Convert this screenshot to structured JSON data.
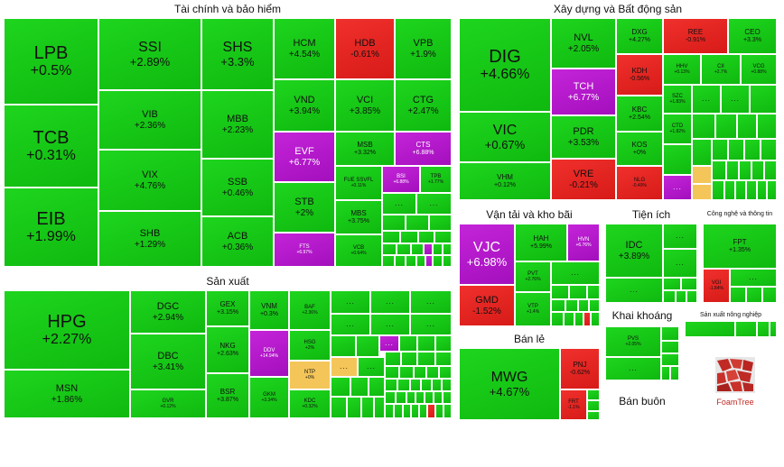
{
  "colors": {
    "up": "#14c614",
    "down": "#e32522",
    "ceiling": "#b41ac9",
    "ref": "#f4c659"
  },
  "sectors": {
    "finance": {
      "title": "Tài chính và bảo hiểm"
    },
    "realestate": {
      "title": "Xây dựng và Bất động sản"
    },
    "transport": {
      "title": "Vận tải và kho bãi"
    },
    "utilities": {
      "title": "Tiện ích"
    },
    "it": {
      "title": "Công nghệ và thông tin"
    },
    "manufacturing": {
      "title": "Sản xuất"
    },
    "mining": {
      "title": "Khai khoáng"
    },
    "agri": {
      "title": "Sản xuất nông nghiệp"
    },
    "retail": {
      "title": "Bán lẻ"
    },
    "wholesale": {
      "title": "Bán buôn"
    }
  },
  "tiles": {
    "LPB": {
      "t": "LPB",
      "v": "+0.5%"
    },
    "TCB": {
      "t": "TCB",
      "v": "+0.31%"
    },
    "EIB": {
      "t": "EIB",
      "v": "+1.99%"
    },
    "SSI": {
      "t": "SSI",
      "v": "+2.89%"
    },
    "VIB": {
      "t": "VIB",
      "v": "+2.36%"
    },
    "VIX": {
      "t": "VIX",
      "v": "+4.76%"
    },
    "SHB": {
      "t": "SHB",
      "v": "+1.29%"
    },
    "SHS": {
      "t": "SHS",
      "v": "+3.3%"
    },
    "MBB": {
      "t": "MBB",
      "v": "+2.23%"
    },
    "SSB": {
      "t": "SSB",
      "v": "+0.46%"
    },
    "ACB": {
      "t": "ACB",
      "v": "+0.36%"
    },
    "HCM": {
      "t": "HCM",
      "v": "+4.54%"
    },
    "HDB": {
      "t": "HDB",
      "v": "-0.61%"
    },
    "VPB": {
      "t": "VPB",
      "v": "+1.9%"
    },
    "VND": {
      "t": "VND",
      "v": "+3.94%"
    },
    "VCI": {
      "t": "VCI",
      "v": "+3.85%"
    },
    "CTG": {
      "t": "CTG",
      "v": "+2.47%"
    },
    "EVF": {
      "t": "EVF",
      "v": "+6.77%"
    },
    "MSB": {
      "t": "MSB",
      "v": "+3.32%"
    },
    "CTS": {
      "t": "CTS",
      "v": "+6.88%"
    },
    "FUESSVFL": {
      "t": "FUE SSVFL",
      "v": "+0.11%"
    },
    "BSI": {
      "t": "BSI",
      "v": "+6.88%"
    },
    "TPB": {
      "t": "TPB",
      "v": "+1.77%"
    },
    "STB": {
      "t": "STB",
      "v": "+2%"
    },
    "MBS": {
      "t": "MBS",
      "v": "+3.75%"
    },
    "FTS": {
      "t": "FTS",
      "v": "+6.97%"
    },
    "VCB": {
      "t": "VCB",
      "v": "+0.64%"
    },
    "DIG": {
      "t": "DIG",
      "v": "+4.66%"
    },
    "VIC": {
      "t": "VIC",
      "v": "+0.67%"
    },
    "VHM": {
      "t": "VHM",
      "v": "+0.12%"
    },
    "NVL": {
      "t": "NVL",
      "v": "+2.05%"
    },
    "TCH": {
      "t": "TCH",
      "v": "+6.77%"
    },
    "PDR": {
      "t": "PDR",
      "v": "+3.53%"
    },
    "VRE": {
      "t": "VRE",
      "v": "-0.21%"
    },
    "DXG": {
      "t": "DXG",
      "v": "+4.27%"
    },
    "REE": {
      "t": "REE",
      "v": "-0.91%"
    },
    "CEO": {
      "t": "CEO",
      "v": "+3.3%"
    },
    "KDH": {
      "t": "KDH",
      "v": "-0.56%"
    },
    "HHV": {
      "t": "HHV",
      "v": "+0.13%"
    },
    "CII": {
      "t": "CII",
      "v": "+2.7%"
    },
    "VCG": {
      "t": "VCG",
      "v": "+0.88%"
    },
    "KBC": {
      "t": "KBC",
      "v": "+2.54%"
    },
    "SZC": {
      "t": "SZC",
      "v": "+1.83%"
    },
    "KOS": {
      "t": "KOS",
      "v": "+0%"
    },
    "CTD": {
      "t": "CTD",
      "v": "+1.82%"
    },
    "NLG": {
      "t": "NLG",
      "v": "-0.49%"
    },
    "VJC": {
      "t": "VJC",
      "v": "+6.98%"
    },
    "HAH": {
      "t": "HAH",
      "v": "+5.99%"
    },
    "HVN": {
      "t": "HVN",
      "v": "+6.76%"
    },
    "PVT": {
      "t": "PVT",
      "v": "+2.76%"
    },
    "GMD": {
      "t": "GMD",
      "v": "-1.52%"
    },
    "VTP": {
      "t": "VTP",
      "v": "+1.4%"
    },
    "IDC": {
      "t": "IDC",
      "v": "+3.89%"
    },
    "FPT": {
      "t": "FPT",
      "v": "+1.35%"
    },
    "VGI": {
      "t": "VGI",
      "v": "-1.84%"
    },
    "HPG": {
      "t": "HPG",
      "v": "+2.27%"
    },
    "MSN": {
      "t": "MSN",
      "v": "+1.86%"
    },
    "DGC": {
      "t": "DGC",
      "v": "+2.94%"
    },
    "DBC": {
      "t": "DBC",
      "v": "+3.41%"
    },
    "GVR": {
      "t": "GVR",
      "v": "+0.12%"
    },
    "GEX": {
      "t": "GEX",
      "v": "+3.15%"
    },
    "NKG": {
      "t": "NKG",
      "v": "+2.63%"
    },
    "BSR": {
      "t": "BSR",
      "v": "+3.87%"
    },
    "VNM": {
      "t": "VNM",
      "v": "+0.3%"
    },
    "DDV": {
      "t": "DDV",
      "v": "+14.94%"
    },
    "GKM": {
      "t": "GKM",
      "v": "+3.34%"
    },
    "BAF": {
      "t": "BAF",
      "v": "+2.36%"
    },
    "HSG": {
      "t": "HSG",
      "v": "+2%"
    },
    "NTP": {
      "t": "NTP",
      "v": "+0%"
    },
    "KDC": {
      "t": "KDC",
      "v": "+0.32%"
    },
    "PVS": {
      "t": "PVS",
      "v": "+2.05%"
    },
    "MWG": {
      "t": "MWG",
      "v": "+4.67%"
    },
    "PNJ": {
      "t": "PNJ",
      "v": "-0.62%"
    },
    "FRT": {
      "t": "FRT",
      "v": "-1.1%"
    }
  },
  "dots": "...",
  "logo": {
    "label": "FoamTree"
  }
}
